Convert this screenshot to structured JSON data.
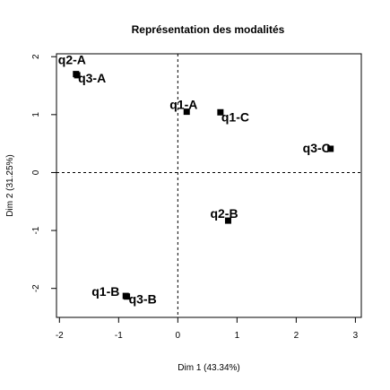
{
  "chart_data": {
    "type": "scatter",
    "title": "Représentation des modalités",
    "xlabel": "Dim 1 (43.34%)",
    "ylabel": "Dim 2 (31.25%)",
    "xlim": [
      -2.05,
      3.1
    ],
    "ylim": [
      -2.5,
      2.05
    ],
    "xticks": [
      -2,
      -1,
      0,
      1,
      2,
      3
    ],
    "yticks": [
      -2,
      -1,
      0,
      1,
      2
    ],
    "reference_lines": {
      "x": 0,
      "y": 0,
      "style": "dashed"
    },
    "grid": false,
    "points": [
      {
        "label": "q2-A",
        "x": -1.72,
        "y": 1.7
      },
      {
        "label": "q3-A",
        "x": -1.7,
        "y": 1.68
      },
      {
        "label": "q1-A",
        "x": 0.15,
        "y": 1.05
      },
      {
        "label": "q1-C",
        "x": 0.72,
        "y": 1.04
      },
      {
        "label": "q3-C",
        "x": 2.58,
        "y": 0.41
      },
      {
        "label": "q2-B",
        "x": 0.85,
        "y": -0.83
      },
      {
        "label": "q1-B",
        "x": -0.88,
        "y": -2.13
      },
      {
        "label": "q3-B",
        "x": -0.86,
        "y": -2.14
      }
    ]
  }
}
